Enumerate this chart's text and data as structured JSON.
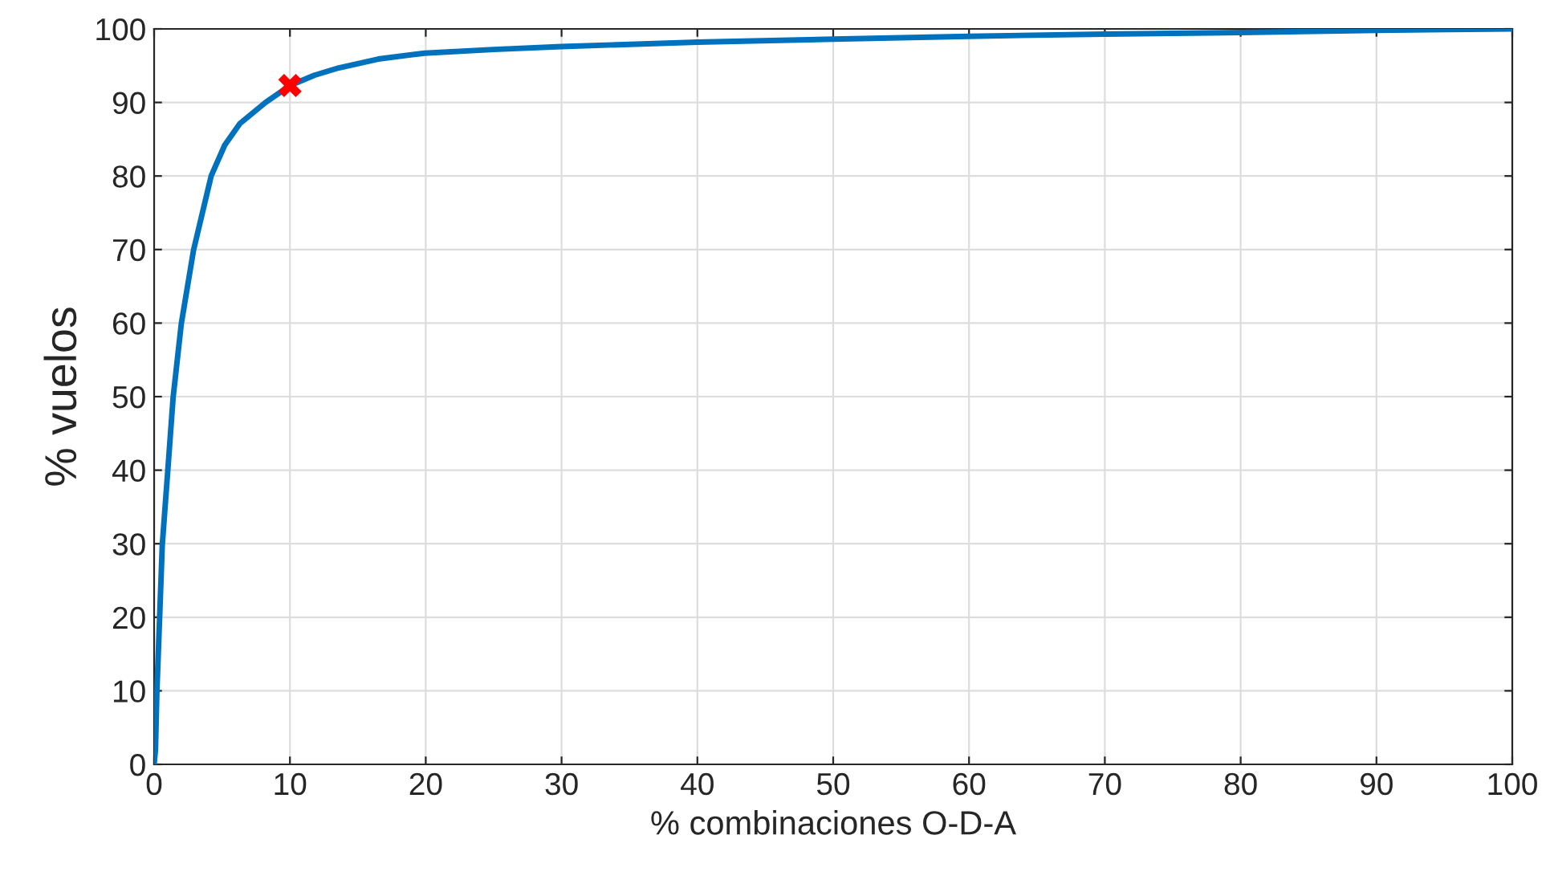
{
  "chart_data": {
    "type": "line",
    "xlabel": "% combinaciones O-D-A",
    "ylabel": "% vuelos",
    "xlim": [
      0,
      100
    ],
    "ylim": [
      0,
      100
    ],
    "xticks": [
      0,
      10,
      20,
      30,
      40,
      50,
      60,
      70,
      80,
      90,
      100
    ],
    "yticks": [
      0,
      10,
      20,
      30,
      40,
      50,
      60,
      70,
      80,
      90,
      100
    ],
    "grid": true,
    "series": [
      {
        "color": "#0072bd",
        "x": [
          0,
          0.1,
          0.2,
          0.4,
          0.6,
          1.0,
          1.4,
          2.0,
          2.9,
          4.2,
          5.2,
          6.3,
          8.2,
          10,
          11.8,
          13.6,
          16.5,
          19.9,
          25,
          30,
          40,
          50,
          60,
          70,
          80,
          90,
          100
        ],
        "values": [
          0,
          2,
          9.7,
          19.7,
          29.8,
          39.8,
          49.9,
          59.9,
          69.9,
          80,
          84.2,
          87.1,
          90,
          92.3,
          93.7,
          94.7,
          95.9,
          96.7,
          97.2,
          97.6,
          98.2,
          98.6,
          99.0,
          99.3,
          99.5,
          99.8,
          100
        ]
      },
      {
        "type": "scatter",
        "color": "#ff0000",
        "marker": "cross",
        "x": [
          10
        ],
        "values": [
          92.3
        ]
      }
    ]
  }
}
